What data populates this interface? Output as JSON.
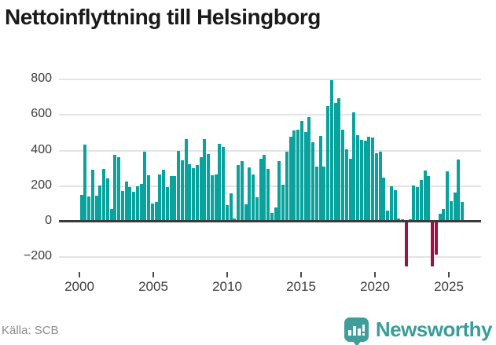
{
  "title": "Nettoinflyttning till Helsingborg",
  "footer": {
    "source": "Källa: SCB",
    "brand": "Newsworthy"
  },
  "colors": {
    "bar_positive": "#0aa29c",
    "bar_negative": "#9e1148",
    "grid": "#e4e4e4",
    "baseline": "#3b3b3b",
    "brand_teal": "#3f9e99",
    "title_text": "#1a1a1a",
    "axis_text": "#3d3d3d",
    "source_text": "#8c8c8c"
  },
  "chart_data": {
    "type": "bar",
    "title": "Nettoinflyttning till Helsingborg",
    "frequency": "quarterly",
    "x_start_year": 2000,
    "x_ticks": [
      2000,
      2005,
      2010,
      2015,
      2020,
      2025
    ],
    "y_ticks": [
      -200,
      0,
      200,
      400,
      600,
      800
    ],
    "y_tick_labels": [
      "−200",
      "0",
      "200",
      "400",
      "600",
      "800"
    ],
    "ylim": [
      -290,
      860
    ],
    "grid": true,
    "legend": "none",
    "values": [
      145,
      430,
      138,
      287,
      140,
      197,
      290,
      237,
      65,
      370,
      360,
      170,
      222,
      190,
      165,
      195,
      208,
      390,
      255,
      98,
      107,
      259,
      289,
      190,
      253,
      250,
      393,
      340,
      460,
      320,
      295,
      313,
      358,
      460,
      375,
      255,
      259,
      433,
      415,
      87,
      155,
      12,
      315,
      337,
      95,
      300,
      261,
      133,
      351,
      373,
      293,
      46,
      75,
      334,
      202,
      387,
      474,
      507,
      511,
      562,
      500,
      582,
      444,
      303,
      477,
      306,
      647,
      792,
      665,
      690,
      511,
      400,
      350,
      608,
      480,
      455,
      450,
      475,
      470,
      380,
      390,
      245,
      59,
      196,
      174,
      12,
      8,
      -250,
      10,
      198,
      190,
      230,
      283,
      250,
      -250,
      -185,
      40,
      65,
      280,
      110,
      160,
      345,
      105
    ]
  }
}
